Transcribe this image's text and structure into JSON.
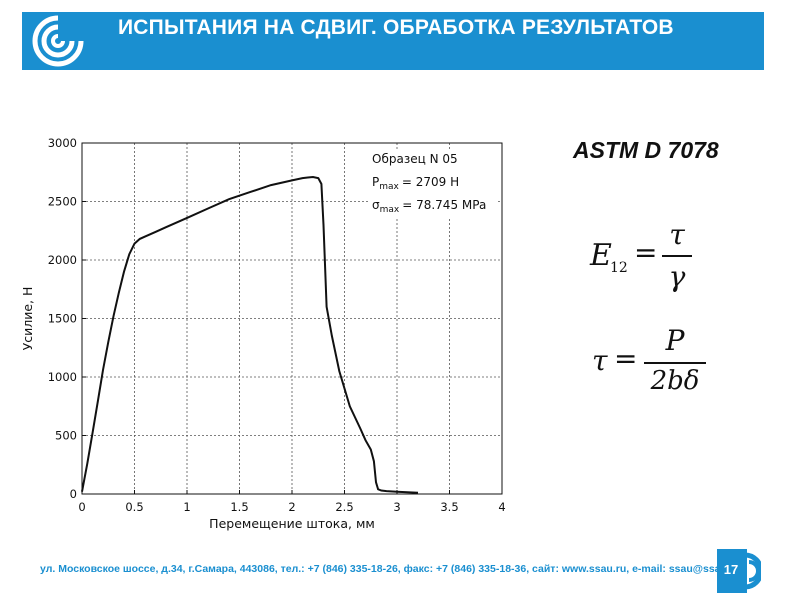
{
  "header": {
    "title": "ИСПЫТАНИЯ НА СДВИГ. ОБРАБОТКА РЕЗУЛЬТАТОВ",
    "bar_color": "#1a8fd0",
    "logo_icon": "university-swirl-logo"
  },
  "standard": "ASTM D 7078",
  "formulas": {
    "shear_modulus": {
      "lhs": "E",
      "lhs_sub": "12",
      "numerator": "τ",
      "denominator": "γ"
    },
    "shear_stress": {
      "lhs": "τ",
      "numerator": "P",
      "denominator": "2bδ"
    }
  },
  "chart_data": {
    "type": "line",
    "title": "",
    "xlabel": "Перемещение штока, мм",
    "ylabel": "Усилие, Н",
    "xlim": [
      0,
      4
    ],
    "ylim": [
      0,
      3000
    ],
    "x_ticks": [
      "0",
      "0.5",
      "1",
      "1.5",
      "2",
      "2.5",
      "3",
      "3.5",
      "4"
    ],
    "y_ticks": [
      "0",
      "500",
      "1000",
      "1500",
      "2000",
      "2500",
      "3000"
    ],
    "grid": true,
    "line_color": "#111111",
    "annotation": {
      "specimen": "Образец N 05",
      "p_max": "P",
      "p_max_sub": "max",
      "p_max_value": "= 2709 Н",
      "sigma_max": "σ",
      "sigma_max_sub": "max",
      "sigma_max_value": "= 78.745 MPa"
    },
    "series": [
      {
        "x": [
          0,
          0.05,
          0.1,
          0.15,
          0.2,
          0.25,
          0.3,
          0.35,
          0.4,
          0.45,
          0.5,
          0.55,
          0.6,
          0.7,
          0.8,
          0.9,
          1.0,
          1.2,
          1.4,
          1.6,
          1.8,
          2.0,
          2.1,
          2.15,
          2.2,
          2.25,
          2.28,
          2.3,
          2.33,
          2.38,
          2.45,
          2.55,
          2.65,
          2.7,
          2.75,
          2.78,
          2.8,
          2.82,
          2.85,
          2.9,
          3.0,
          3.1,
          3.2
        ],
        "y": [
          20,
          260,
          520,
          790,
          1060,
          1300,
          1520,
          1720,
          1900,
          2050,
          2140,
          2180,
          2200,
          2240,
          2280,
          2320,
          2360,
          2440,
          2520,
          2580,
          2640,
          2680,
          2700,
          2705,
          2709,
          2700,
          2650,
          2300,
          1600,
          1350,
          1050,
          750,
          560,
          460,
          380,
          280,
          100,
          40,
          30,
          25,
          20,
          15,
          10
        ]
      }
    ]
  },
  "footer": {
    "contact": "ул. Московское шоссе, д.34, г.Самара, 443086, тел.: +7 (846) 335-18-26, факс: +7 (846) 335-18-36, сайт: www.ssau.ru, e-mail: ssau@ssau.ru",
    "page_number": "17"
  }
}
